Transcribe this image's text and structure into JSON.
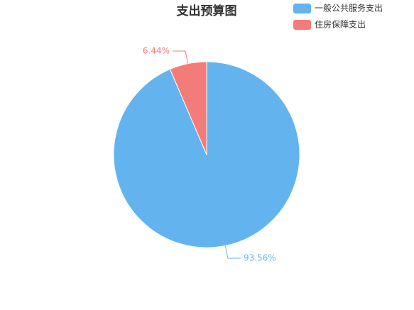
{
  "chart_data": {
    "type": "pie",
    "title": "支出预算图",
    "categories": [
      "一般公共服务支出",
      "住房保障支出"
    ],
    "values": [
      93.56,
      6.44
    ],
    "value_labels": [
      "93.56%",
      "6.44%"
    ],
    "colors": [
      "#62b3ee",
      "#f47c78"
    ]
  }
}
